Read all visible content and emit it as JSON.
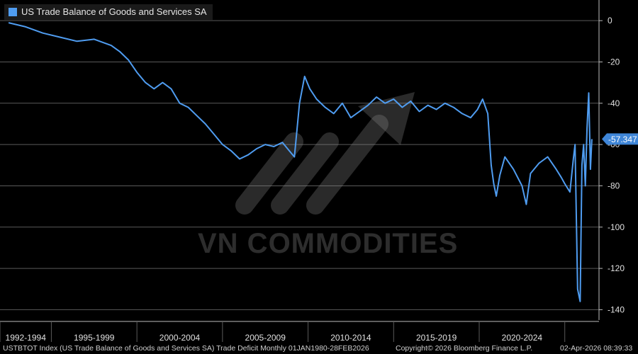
{
  "legend": {
    "label": "US Trade Balance of Goods and Services SA",
    "color": "#4f9cf0"
  },
  "last_value_label": "-57.347",
  "footer": {
    "left": "USTBTOT Index (US Trade Balance of Goods and Services SA) Trade Deficit Monthly 01JAN1980-28FEB2026",
    "center": "Copyright© 2026 Bloomberg Finance L.P.",
    "right": "02-Apr-2026 08:39:33"
  },
  "watermark": {
    "text": "VN COMMODITIES"
  },
  "chart_data": {
    "type": "line",
    "title": "",
    "xlabel": "",
    "ylabel": "",
    "ylim": [
      -145,
      10
    ],
    "yticks": [
      0,
      -20,
      -40,
      -60,
      -80,
      -100,
      -120,
      -140
    ],
    "x_period_labels": [
      "1992-1994",
      "1995-1999",
      "2000-2004",
      "2005-2009",
      "2010-2014",
      "2015-2019",
      "2020-2024"
    ],
    "grid": true,
    "legend_position": "top-left",
    "series": [
      {
        "name": "US Trade Balance of Goods and Services SA",
        "color": "#4f9cf0",
        "x": [
          1992.0,
          1993.0,
          1994.0,
          1995.0,
          1996.0,
          1997.0,
          1998.0,
          1998.5,
          1999.0,
          1999.5,
          2000.0,
          2000.5,
          2001.0,
          2001.5,
          2002.0,
          2002.5,
          2003.0,
          2003.5,
          2004.0,
          2004.5,
          2005.0,
          2005.5,
          2006.0,
          2006.5,
          2007.0,
          2007.5,
          2008.0,
          2008.4,
          2008.7,
          2009.0,
          2009.3,
          2009.6,
          2010.0,
          2010.5,
          2011.0,
          2011.5,
          2012.0,
          2012.5,
          2013.0,
          2013.5,
          2014.0,
          2014.5,
          2015.0,
          2015.5,
          2016.0,
          2016.5,
          2017.0,
          2017.5,
          2018.0,
          2018.5,
          2019.0,
          2019.4,
          2019.7,
          2020.0,
          2020.2,
          2020.35,
          2020.5,
          2020.7,
          2021.0,
          2021.5,
          2022.0,
          2022.25,
          2022.5,
          2023.0,
          2023.5,
          2024.0,
          2024.3,
          2024.5,
          2024.8,
          2025.0,
          2025.1,
          2025.25,
          2025.4,
          2025.5,
          2025.6,
          2025.7,
          2025.8,
          2025.9,
          2026.0,
          2026.08
        ],
        "values": [
          -1,
          -3,
          -6,
          -8,
          -10,
          -9,
          -12,
          -15,
          -19,
          -25,
          -30,
          -33,
          -30,
          -33,
          -40,
          -42,
          -46,
          -50,
          -55,
          -60,
          -63,
          -67,
          -65,
          -62,
          -60,
          -61,
          -59,
          -63,
          -66,
          -40,
          -27,
          -33,
          -38,
          -42,
          -45,
          -40,
          -47,
          -44,
          -41,
          -37,
          -40,
          -38,
          -42,
          -39,
          -44,
          -41,
          -43,
          -40,
          -42,
          -45,
          -47,
          -43,
          -38,
          -45,
          -70,
          -79,
          -85,
          -75,
          -66,
          -72,
          -80,
          -89,
          -74,
          -69,
          -66,
          -72,
          -76,
          -79,
          -83,
          -67,
          -60,
          -130,
          -136,
          -70,
          -60,
          -80,
          -52,
          -35,
          -72,
          -57.347
        ]
      }
    ]
  }
}
